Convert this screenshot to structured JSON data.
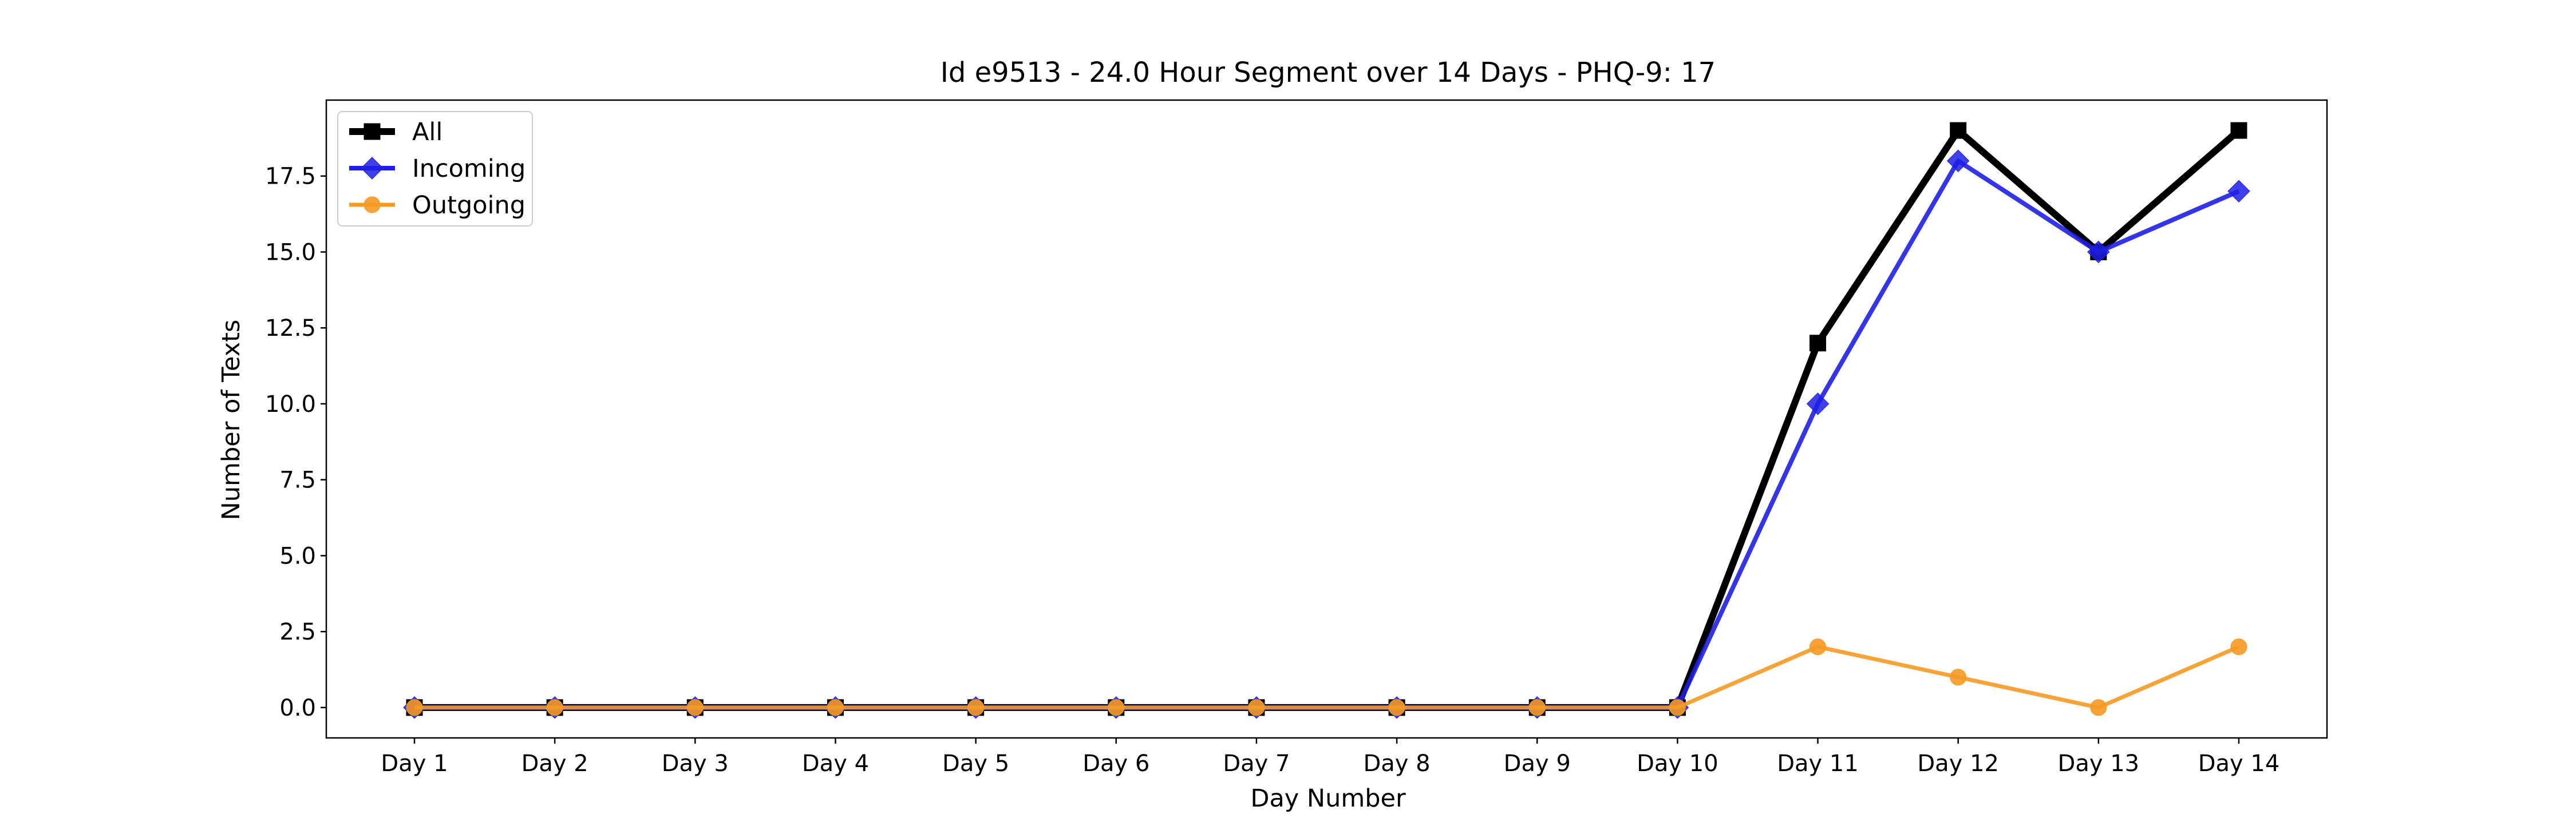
{
  "chart_data": {
    "type": "line",
    "title": "Id e9513 - 24.0 Hour Segment over 14 Days - PHQ-9: 17",
    "xlabel": "Day Number",
    "ylabel": "Number of Texts",
    "categories": [
      "Day 1",
      "Day 2",
      "Day 3",
      "Day 4",
      "Day 5",
      "Day 6",
      "Day 7",
      "Day 8",
      "Day 9",
      "Day 10",
      "Day 11",
      "Day 12",
      "Day 13",
      "Day 14"
    ],
    "ylim": [
      -1,
      20
    ],
    "yticks": [
      0.0,
      2.5,
      5.0,
      7.5,
      10.0,
      12.5,
      15.0,
      17.5
    ],
    "ytick_labels": [
      "0.0",
      "2.5",
      "5.0",
      "7.5",
      "10.0",
      "12.5",
      "15.0",
      "17.5"
    ],
    "grid": false,
    "legend_position": "top-left",
    "series": [
      {
        "name": "All",
        "values": [
          0,
          0,
          0,
          0,
          0,
          0,
          0,
          0,
          0,
          0,
          12,
          19,
          15,
          19
        ],
        "color": "#000000",
        "marker": "square"
      },
      {
        "name": "Incoming",
        "values": [
          0,
          0,
          0,
          0,
          0,
          0,
          0,
          0,
          0,
          0,
          10,
          18,
          15,
          17
        ],
        "color": "#1f1fe6",
        "marker": "diamond"
      },
      {
        "name": "Outgoing",
        "values": [
          0,
          0,
          0,
          0,
          0,
          0,
          0,
          0,
          0,
          0,
          2,
          1,
          0,
          2
        ],
        "color": "#f59a23",
        "marker": "circle"
      }
    ]
  }
}
